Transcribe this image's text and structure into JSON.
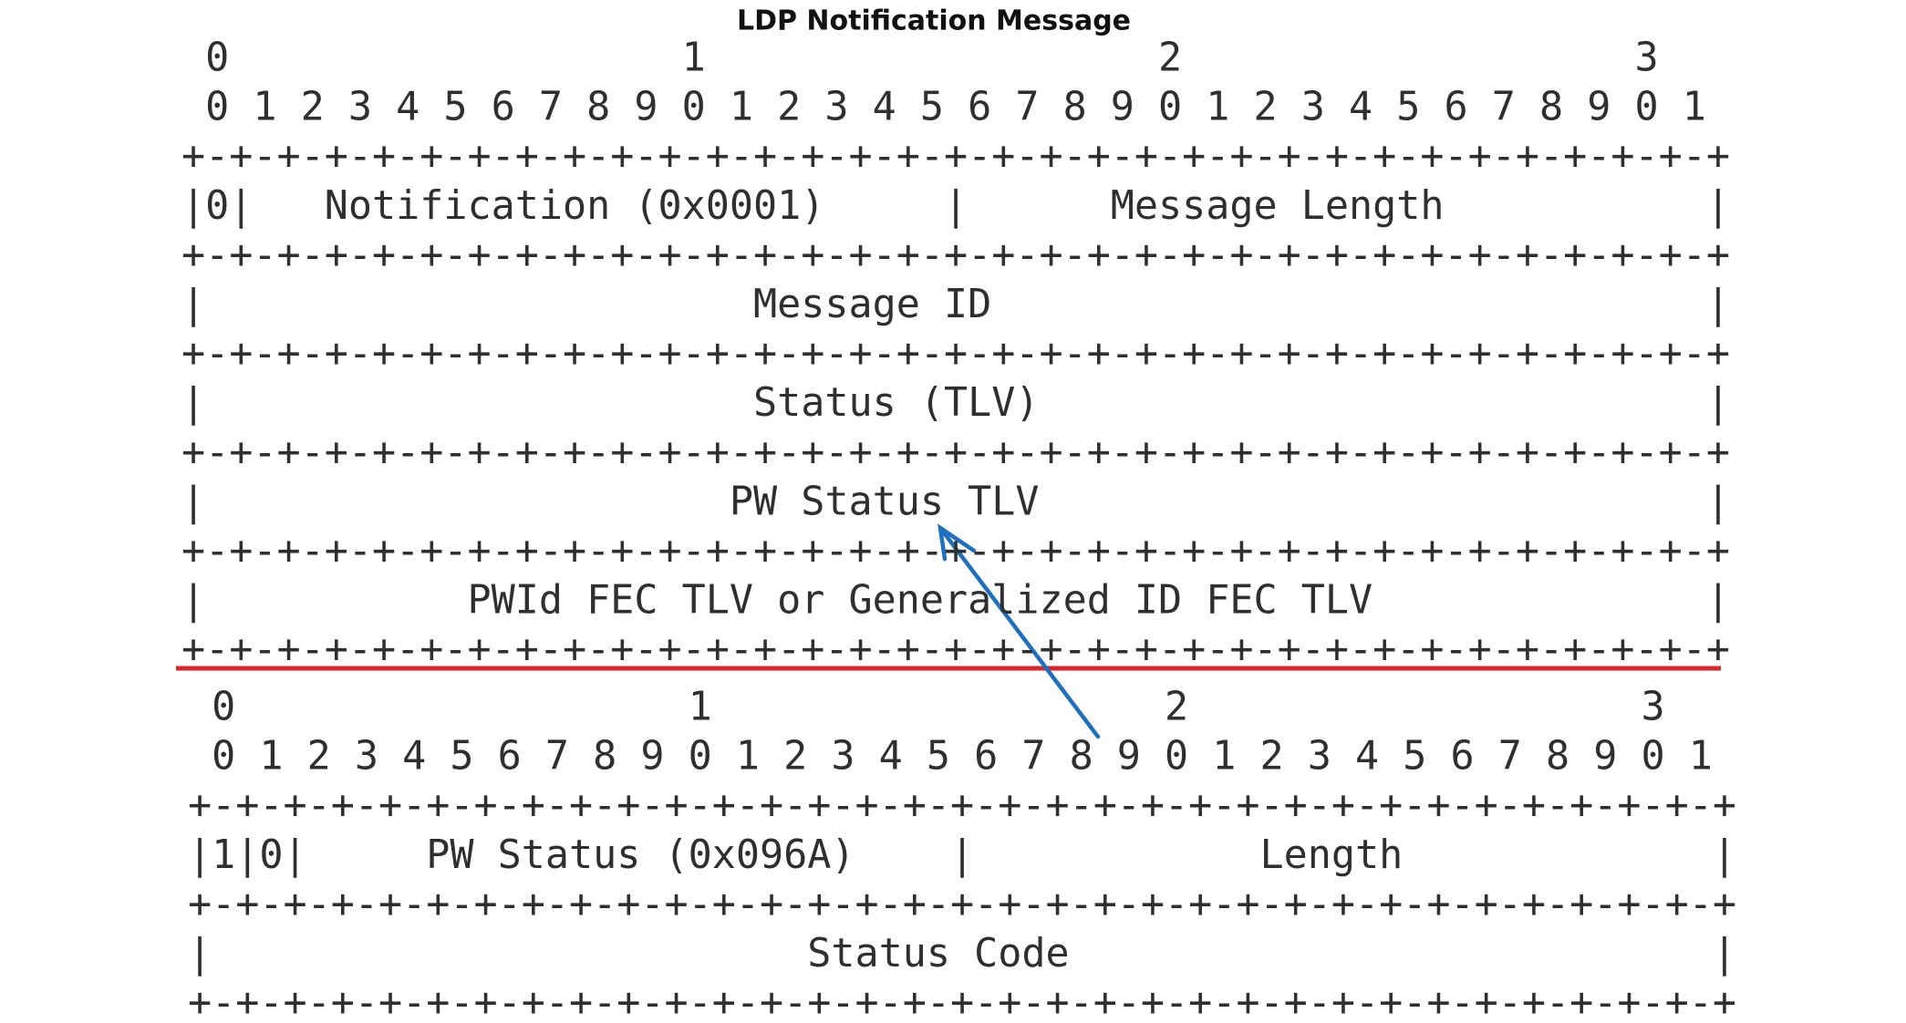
{
  "title": "LDP Notification Message",
  "diagrams": [
    {
      "lines": [
        " 0                   1                   2                   3",
        " 0 1 2 3 4 5 6 7 8 9 0 1 2 3 4 5 6 7 8 9 0 1 2 3 4 5 6 7 8 9 0 1",
        "+-+-+-+-+-+-+-+-+-+-+-+-+-+-+-+-+-+-+-+-+-+-+-+-+-+-+-+-+-+-+-+-+",
        "|0|   Notification (0x0001)     |      Message Length           |",
        "+-+-+-+-+-+-+-+-+-+-+-+-+-+-+-+-+-+-+-+-+-+-+-+-+-+-+-+-+-+-+-+-+",
        "|                       Message ID                              |",
        "+-+-+-+-+-+-+-+-+-+-+-+-+-+-+-+-+-+-+-+-+-+-+-+-+-+-+-+-+-+-+-+-+",
        "|                       Status (TLV)                            |",
        "+-+-+-+-+-+-+-+-+-+-+-+-+-+-+-+-+-+-+-+-+-+-+-+-+-+-+-+-+-+-+-+-+",
        "|                      PW Status TLV                            |",
        "+-+-+-+-+-+-+-+-+-+-+-+-+-+-+-+-+-+-+-+-+-+-+-+-+-+-+-+-+-+-+-+-+",
        "|           PWId FEC TLV or Generalized ID FEC TLV              |",
        "+-+-+-+-+-+-+-+-+-+-+-+-+-+-+-+-+-+-+-+-+-+-+-+-+-+-+-+-+-+-+-+-+"
      ]
    },
    {
      "lines": [
        " 0                   1                   2                   3",
        " 0 1 2 3 4 5 6 7 8 9 0 1 2 3 4 5 6 7 8 9 0 1 2 3 4 5 6 7 8 9 0 1",
        "+-+-+-+-+-+-+-+-+-+-+-+-+-+-+-+-+-+-+-+-+-+-+-+-+-+-+-+-+-+-+-+-+",
        "|1|0|     PW Status (0x096A)    |            Length             |",
        "+-+-+-+-+-+-+-+-+-+-+-+-+-+-+-+-+-+-+-+-+-+-+-+-+-+-+-+-+-+-+-+-+",
        "|                         Status Code                           |",
        "+-+-+-+-+-+-+-+-+-+-+-+-+-+-+-+-+-+-+-+-+-+-+-+-+-+-+-+-+-+-+-+-+"
      ]
    }
  ]
}
